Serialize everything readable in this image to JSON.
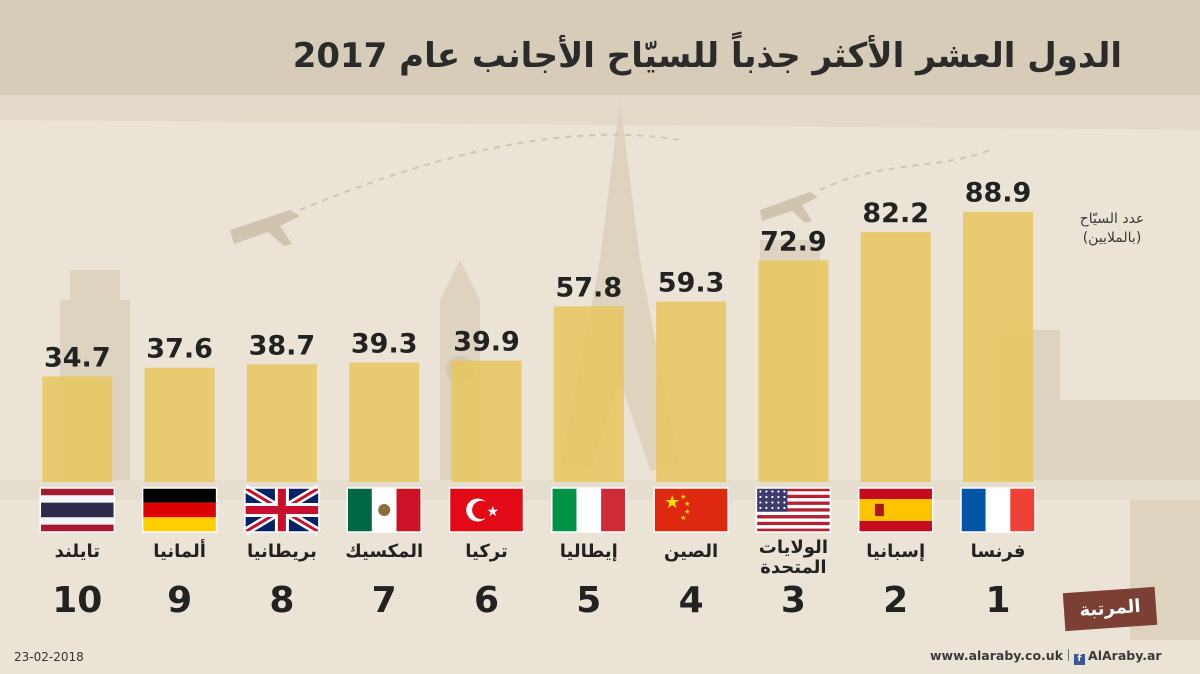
{
  "title": "الدول العشر الأكثر جذباً للسيّاح الأجانب عام 2017",
  "unit_label_line1": "عدد السيّاح",
  "unit_label_line2": "(بالملايين)",
  "rank_label": "المرتبة",
  "date": "23-02-2018",
  "footer_site": "www.alaraby.co.uk",
  "footer_social": "AlAraby.ar",
  "colors": {
    "bar": "#e8c65e",
    "text": "#222222",
    "rank_tag": "#7c3f34",
    "background": "#ece5d8"
  },
  "chart_data": {
    "type": "bar",
    "title": "الدول العشر الأكثر جذباً للسيّاح الأجانب عام 2017",
    "ylabel": "عدد السيّاح (بالملايين)",
    "ylim": [
      0,
      100
    ],
    "categories": [
      "فرنسا",
      "إسبانيا",
      "الولايات المتحدة",
      "الصين",
      "إيطاليا",
      "تركيا",
      "المكسيك",
      "بريطانيا",
      "ألمانيا",
      "تايلند"
    ],
    "values": [
      88.9,
      82.2,
      72.9,
      59.3,
      57.8,
      39.9,
      39.3,
      38.7,
      37.6,
      34.7
    ],
    "value_labels": [
      "88.9",
      "82.2",
      "72.9",
      "59.3",
      "57.8",
      "39.9",
      "39.3",
      "38.7",
      "37.6",
      "34.7"
    ],
    "ranks": [
      "1",
      "2",
      "3",
      "4",
      "5",
      "6",
      "7",
      "8",
      "9",
      "10"
    ],
    "name_lines": [
      [
        "فرنسا"
      ],
      [
        "إسبانيا"
      ],
      [
        "الولايات",
        "المتحدة"
      ],
      [
        "الصين"
      ],
      [
        "إيطاليا"
      ],
      [
        "تركيا"
      ],
      [
        "المكسيك"
      ],
      [
        "بريطانيا"
      ],
      [
        "ألمانيا"
      ],
      [
        "تايلند"
      ]
    ],
    "flags": [
      "france-flag",
      "spain-flag",
      "usa-flag",
      "china-flag",
      "italy-flag",
      "turkey-flag",
      "mexico-flag",
      "uk-flag",
      "germany-flag",
      "thailand-flag"
    ]
  }
}
